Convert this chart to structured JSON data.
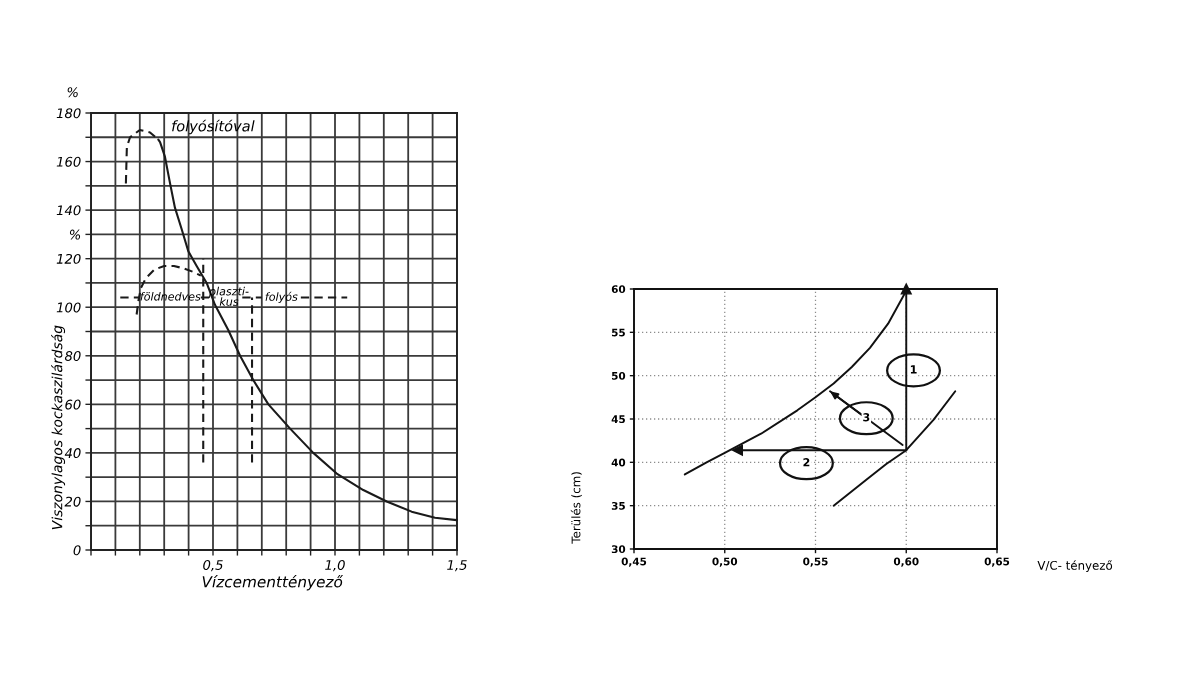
{
  "chart_data": [
    {
      "type": "line",
      "xlabel": "Vízcementtényező",
      "ylabel": "Viszonylagos kockaszilárdság",
      "xlim": [
        0,
        1.5
      ],
      "ylim": [
        0,
        180
      ],
      "xticks": [
        {
          "value": 0,
          "label": null
        },
        {
          "value": 0.1,
          "label": null
        },
        {
          "value": 0.2,
          "label": null
        },
        {
          "value": 0.3,
          "label": null
        },
        {
          "value": 0.4,
          "label": null
        },
        {
          "value": 0.5,
          "label": "0,5"
        },
        {
          "value": 0.6,
          "label": null
        },
        {
          "value": 0.7,
          "label": null
        },
        {
          "value": 0.8,
          "label": null
        },
        {
          "value": 0.9,
          "label": null
        },
        {
          "value": 1.0,
          "label": "1,0"
        },
        {
          "value": 1.1,
          "label": null
        },
        {
          "value": 1.2,
          "label": null
        },
        {
          "value": 1.3,
          "label": null
        },
        {
          "value": 1.4,
          "label": null
        },
        {
          "value": 1.5,
          "label": "1,5"
        }
      ],
      "yticks": [
        0,
        {
          "value": 10,
          "label": null
        },
        20,
        {
          "value": 30,
          "label": null
        },
        40,
        {
          "value": 50,
          "label": null
        },
        60,
        {
          "value": 70,
          "label": null
        },
        80,
        {
          "value": 90,
          "label": null
        },
        100,
        {
          "value": 110,
          "label": null
        },
        120,
        {
          "value": 130,
          "label": "%"
        },
        140,
        {
          "value": 150,
          "label": null
        },
        160,
        {
          "value": 170,
          "label": null
        },
        180
      ],
      "grid": true,
      "series": [
        {
          "color": "#1a1a1a",
          "x": [
            0.276,
            0.283,
            0.303,
            0.324,
            0.344,
            0.372,
            0.399,
            0.433,
            0.474,
            0.508,
            0.563,
            0.611,
            0.665,
            0.727,
            0.816,
            0.911,
            1.007,
            1.116,
            1.212,
            1.314,
            1.41,
            1.499
          ],
          "values": [
            169,
            168,
            162,
            151,
            141,
            132,
            123,
            117,
            110,
            101,
            90.5,
            80,
            70,
            60,
            50,
            40,
            31.5,
            24.7,
            20,
            15.8,
            13.3,
            12.3
          ]
        },
        {
          "color": "#1a1a1a",
          "line_style": "dashed",
          "x": [
            0.143,
            0.147,
            0.16,
            0.2,
            0.242,
            0.276
          ],
          "values": [
            151,
            166,
            170,
            173,
            172,
            169
          ]
        },
        {
          "color": "#1a1a1a",
          "line_style": "dashed",
          "x": [
            0.187,
            0.195,
            0.205,
            0.225,
            0.26,
            0.3,
            0.34,
            0.38,
            0.42,
            0.45
          ],
          "values": [
            97,
            103,
            108,
            112,
            115.5,
            117,
            117,
            116,
            114.5,
            113
          ]
        },
        {
          "color": "#1a1a1a",
          "line_style": "dashed",
          "x": [
            0.46,
            0.46
          ],
          "values": [
            36,
            120
          ]
        },
        {
          "color": "#1a1a1a",
          "line_style": "dashed",
          "x": [
            0.66,
            0.66
          ],
          "values": [
            36,
            104
          ]
        },
        {
          "color": "#1a1a1a",
          "line_style": "dashed",
          "x": [
            0.12,
            0.2,
            0.325,
            0.45,
            0.51,
            0.565,
            0.62,
            0.7,
            0.78,
            0.86,
            1.05
          ],
          "values": [
            104,
            104,
            null,
            104,
            104,
            null,
            104,
            104,
            null,
            104,
            104
          ]
        }
      ],
      "annotations": [
        "%",
        "folyósítóval",
        "földnedves",
        "plaszti-\nkus",
        "folyós"
      ]
    },
    {
      "type": "line",
      "xlabel": "V/C- tényező",
      "ylabel": "Terülés (cm)",
      "xlim": [
        0.45,
        0.65
      ],
      "ylim": [
        30,
        60
      ],
      "xticks": [
        {
          "value": 0.45,
          "label": "0,45"
        },
        {
          "value": 0.5,
          "label": "0,50"
        },
        {
          "value": 0.55,
          "label": "0,55"
        },
        {
          "value": 0.6,
          "label": "0,60"
        },
        {
          "value": 0.65,
          "label": "0,65"
        }
      ],
      "yticks": [
        30,
        35,
        40,
        45,
        50,
        55,
        60
      ],
      "grid": true,
      "series": [
        {
          "color": "#111111",
          "x": [
            0.478,
            0.49,
            0.5,
            0.52,
            0.54,
            0.55,
            0.56,
            0.57,
            0.58,
            0.59,
            0.6
          ],
          "values": [
            38.6,
            40.0,
            41.1,
            43.3,
            46.0,
            47.5,
            49.1,
            51.0,
            53.2,
            56.0,
            59.8
          ]
        },
        {
          "color": "#111111",
          "x": [
            0.56,
            0.578,
            0.589,
            0.6,
            0.615,
            0.627
          ],
          "values": [
            35,
            38,
            39.8,
            41.4,
            44.9,
            48.2
          ]
        },
        {
          "color": "#111111",
          "marker": "triangle",
          "x": [
            0.6,
            0.6
          ],
          "values": [
            41.4,
            60
          ]
        },
        {
          "color": "#111111",
          "marker": "triangle",
          "x": [
            0.6,
            0.507
          ],
          "values": [
            41.4,
            41.4
          ]
        },
        {
          "color": "#111111",
          "x": [
            0.598,
            0.558
          ],
          "values": [
            42,
            48.2
          ]
        }
      ],
      "annotations": [
        "1",
        "2",
        {
          "text": "3",
          "x": 0.558,
          "y": 48.2
        }
      ]
    }
  ]
}
